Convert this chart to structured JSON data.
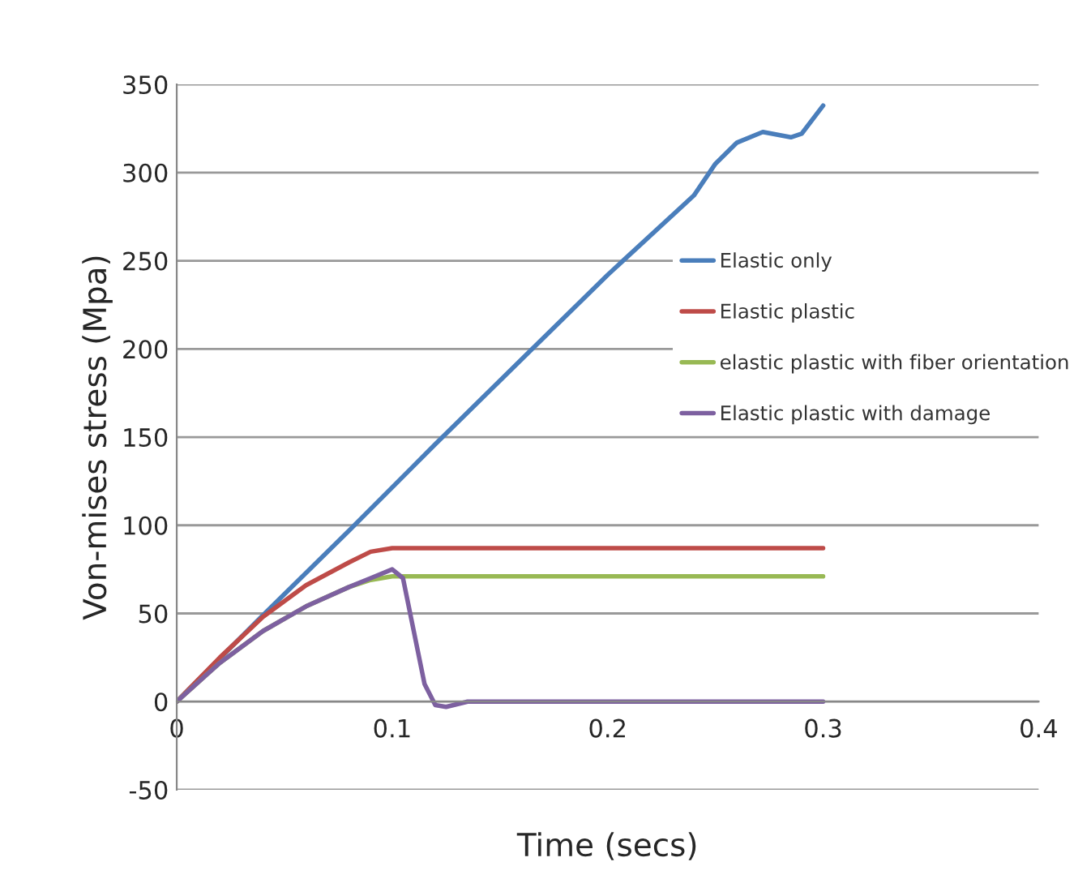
{
  "chart_data": {
    "type": "line",
    "xlabel": "Time (secs)",
    "ylabel": "Von-mises stress (Mpa)",
    "xlim": [
      0,
      0.4
    ],
    "xticks": [
      0,
      0.1,
      0.2,
      0.3,
      0.4
    ],
    "ylim": [
      -50,
      350
    ],
    "yticks": [
      -50,
      0,
      50,
      100,
      150,
      200,
      250,
      300,
      350
    ],
    "grid": "y",
    "legend": "right",
    "marker": "none",
    "line_style": "solid",
    "series": [
      {
        "name": "Elastic only",
        "color": "#4a7ebb",
        "x": [
          0,
          0.04,
          0.08,
          0.12,
          0.16,
          0.2,
          0.24,
          0.25,
          0.26,
          0.272,
          0.285,
          0.29,
          0.3
        ],
        "values": [
          0,
          49,
          97,
          146,
          194,
          242,
          287,
          305,
          317,
          323,
          320,
          322,
          338
        ]
      },
      {
        "name": "Elastic plastic",
        "color": "#be4b48",
        "x": [
          0,
          0.02,
          0.04,
          0.06,
          0.08,
          0.09,
          0.1,
          0.11,
          0.3
        ],
        "values": [
          0,
          25,
          48,
          66,
          79,
          85,
          87,
          87,
          87
        ]
      },
      {
        "name": "elastic plastic with fiber orientation",
        "color": "#98b954",
        "x": [
          0,
          0.02,
          0.04,
          0.06,
          0.08,
          0.09,
          0.1,
          0.3
        ],
        "values": [
          0,
          22,
          40,
          54,
          65,
          69,
          71,
          71
        ]
      },
      {
        "name": "Elastic plastic with damage",
        "color": "#7d60a0",
        "x": [
          0,
          0.02,
          0.04,
          0.06,
          0.08,
          0.09,
          0.1,
          0.105,
          0.11,
          0.115,
          0.12,
          0.125,
          0.135,
          0.3
        ],
        "values": [
          0,
          22,
          40,
          54,
          65,
          70,
          75,
          70,
          40,
          10,
          -2,
          -3,
          0,
          0
        ]
      }
    ]
  }
}
